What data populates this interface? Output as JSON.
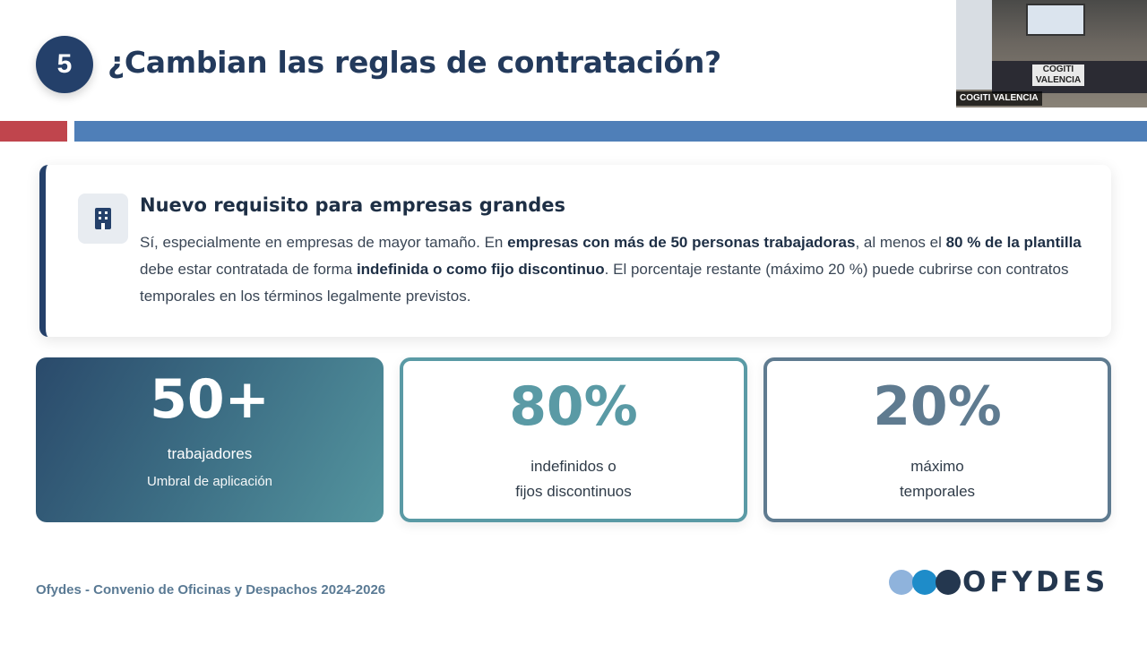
{
  "slide": {
    "number": "5",
    "title": "¿Cambian las reglas de contratación?"
  },
  "info": {
    "icon": "building-icon",
    "heading": "Nuevo requisito para empresas grandes",
    "body": [
      {
        "t": "Sí, especialmente en empresas de mayor tamaño. En ",
        "b": false
      },
      {
        "t": "empresas con más de 50 personas trabajadoras",
        "b": true
      },
      {
        "t": ", al menos el ",
        "b": false
      },
      {
        "t": "80 % de la plantilla",
        "b": true
      },
      {
        "t": " debe estar contratada de forma ",
        "b": false
      },
      {
        "t": "indefinida o como fijo discontinuo",
        "b": true
      },
      {
        "t": ". El porcentaje restante (máximo 20 %) puede cubrirse con contratos temporales en los términos legalmente previstos.",
        "b": false
      }
    ]
  },
  "stats": [
    {
      "value": "50+",
      "label": "trabajadores",
      "sub": "Umbral de aplicación"
    },
    {
      "value": "80%",
      "label_line1": "indefinidos o",
      "label_line2": "fijos discontinuos"
    },
    {
      "value": "20%",
      "label_line1": "máximo",
      "label_line2": "temporales"
    }
  ],
  "footer": {
    "text": "Ofydes - Convenio de Oficinas y Despachos 2024-2026",
    "logo_text": "OFYDES"
  },
  "video": {
    "caption": "COGITI VALENCIA",
    "sign_line1": "COGITI",
    "sign_line2": "VALENCIA"
  },
  "colors": {
    "primary": "#24406a",
    "accent_red": "#c0454d",
    "accent_blue": "#4f7fb8",
    "teal": "#5a9aa5",
    "slate": "#5f7b90"
  }
}
